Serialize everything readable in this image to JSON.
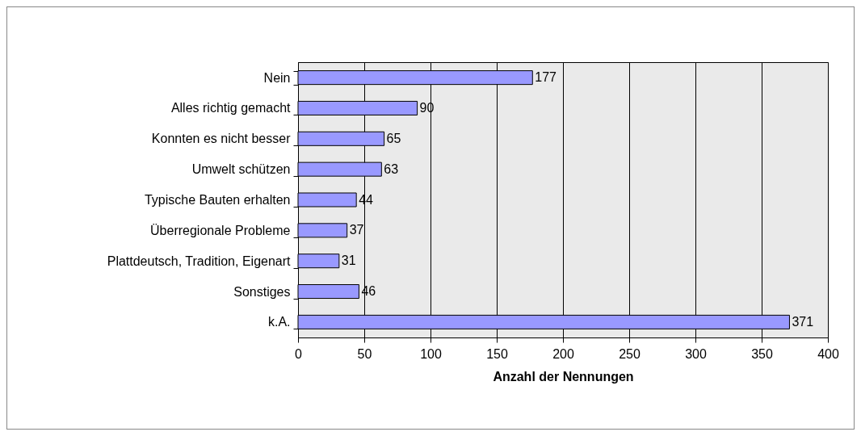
{
  "chart_data": {
    "type": "bar",
    "orientation": "horizontal",
    "categories": [
      "Nein",
      "Alles richtig gemacht",
      "Konnten es nicht besser",
      "Umwelt schützen",
      "Typische Bauten erhalten",
      "Überregionale Probleme",
      "Plattdeutsch, Tradition, Eigenart",
      "Sonstiges",
      "k.A."
    ],
    "values": [
      177,
      90,
      65,
      63,
      44,
      37,
      31,
      46,
      371
    ],
    "color": "#9999ff",
    "xlim": [
      0,
      400
    ],
    "xticks": [
      0,
      50,
      100,
      150,
      200,
      250,
      300,
      350,
      400
    ],
    "xlabel": "Anzahl der Nennungen",
    "grid": "x",
    "data_labels": true
  }
}
